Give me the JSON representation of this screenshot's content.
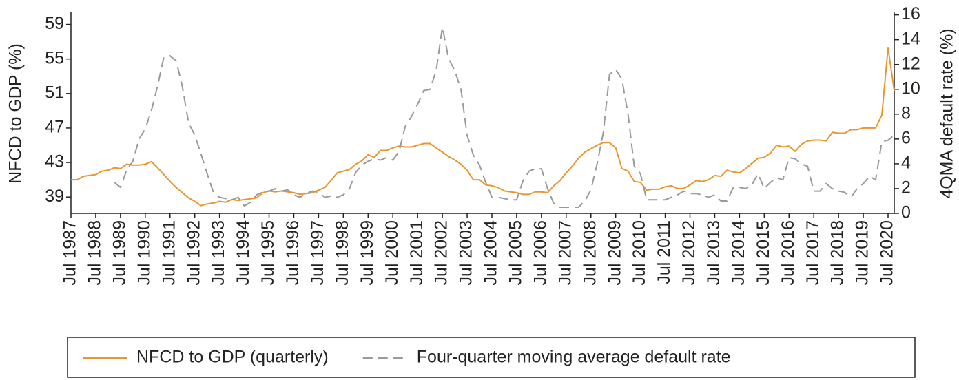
{
  "chart_data": {
    "type": "line",
    "ylabel": "NFCD to GDP (%)",
    "y2label": "4QMA default rate (%)",
    "categories": [
      "Jul 1987",
      null,
      null,
      null,
      "Jul 1988",
      null,
      null,
      null,
      "Jul 1989",
      null,
      null,
      null,
      "Jul 1990",
      null,
      null,
      null,
      "Jul 1991",
      null,
      null,
      null,
      "Jul 1992",
      null,
      null,
      null,
      "Jul 1993",
      null,
      null,
      null,
      "Jul 1994",
      null,
      null,
      null,
      "Jul 1995",
      null,
      null,
      null,
      "Jul 1996",
      null,
      null,
      null,
      "Jul 1997",
      null,
      null,
      null,
      "Jul 1998",
      null,
      null,
      null,
      "Jul 1999",
      null,
      null,
      null,
      "Jul 2000",
      null,
      null,
      null,
      "Jul 2001",
      null,
      null,
      null,
      "Jul 2002",
      null,
      null,
      null,
      "Jul 2003",
      null,
      null,
      null,
      "Jul 2004",
      null,
      null,
      null,
      "Jul 2005",
      null,
      null,
      null,
      "Jul 2006",
      null,
      null,
      null,
      "Jul 2007",
      null,
      null,
      null,
      "Jul 2008",
      null,
      null,
      null,
      "Jul 2009",
      null,
      null,
      null,
      "Jul 2010",
      null,
      null,
      null,
      "Jul 2011",
      null,
      null,
      null,
      "Jul 2012",
      null,
      null,
      null,
      "Jul 2013",
      null,
      null,
      null,
      "Jul 2014",
      null,
      null,
      null,
      "Jul 2015",
      null,
      null,
      null,
      "Jul 2016",
      null,
      null,
      null,
      "Jul 2017",
      null,
      null,
      null,
      "Jul 2018",
      null,
      null,
      null,
      "Jul 2019",
      null,
      null,
      null,
      "Jul 2020",
      null
    ],
    "series": [
      {
        "name": "NFCD to GDP (quarterly)",
        "color": "#e8962e",
        "linestyle": "solid",
        "axis": "y",
        "values": [
          41,
          41,
          41.4,
          41.5,
          41.6,
          42.0,
          42.1,
          42.4,
          42.3,
          42.8,
          42.7,
          42.7,
          42.8,
          43.1,
          42.4,
          41.6,
          40.8,
          40.1,
          39.5,
          38.9,
          38.5,
          38.0,
          38.2,
          38.3,
          38.5,
          38.4,
          38.7,
          38.6,
          38.7,
          38.8,
          38.9,
          39.5,
          39.7,
          39.6,
          39.7,
          39.6,
          39.5,
          39.3,
          39.4,
          39.5,
          39.8,
          40.1,
          40.9,
          41.8,
          42.0,
          42.2,
          42.8,
          43.2,
          43.9,
          43.6,
          44.4,
          44.4,
          44.7,
          44.9,
          44.8,
          44.8,
          45.0,
          45.2,
          45.2,
          44.7,
          44.2,
          43.7,
          43.3,
          42.8,
          42.1,
          41.0,
          41.0,
          40.4,
          40.3,
          40.1,
          39.7,
          39.6,
          39.5,
          39.3,
          39.3,
          39.6,
          39.6,
          39.5,
          40.3,
          40.9,
          41.8,
          42.6,
          43.5,
          44.2,
          44.6,
          45.0,
          45.3,
          45.3,
          44.7,
          42.3,
          42.0,
          40.8,
          40.7,
          39.8,
          39.9,
          39.9,
          40.2,
          40.3,
          40.0,
          40.0,
          40.4,
          40.9,
          40.8,
          41.0,
          41.5,
          41.4,
          42.1,
          41.9,
          41.8,
          42.3,
          42.9,
          43.5,
          43.6,
          44.1,
          45.0,
          44.8,
          44.9,
          44.3,
          45.1,
          45.5,
          45.6,
          45.6,
          45.5,
          46.5,
          46.4,
          46.4,
          46.8,
          46.8,
          47.0,
          47.0,
          47.0,
          48.5,
          56.3,
          51.3
        ]
      },
      {
        "name": "Four-quarter moving average default rate",
        "color": "#999999",
        "linestyle": "dashed",
        "axis": "y2",
        "values": [
          null,
          null,
          null,
          null,
          null,
          null,
          null,
          2.5,
          2.1,
          3.5,
          4.2,
          6.0,
          6.8,
          8.3,
          10.3,
          12.6,
          12.7,
          12.3,
          10.2,
          7.3,
          6.3,
          4.8,
          3.2,
          1.7,
          1.3,
          1.2,
          1.1,
          1.3,
          0.6,
          0.9,
          1.5,
          1.7,
          1.8,
          2.0,
          1.8,
          1.9,
          1.5,
          1.3,
          1.6,
          1.8,
          1.7,
          1.3,
          1.4,
          1.3,
          1.5,
          2.0,
          3.3,
          3.9,
          4.2,
          4.4,
          4.3,
          4.5,
          4.3,
          5.0,
          7.0,
          7.8,
          8.8,
          9.9,
          10.0,
          11.5,
          15.0,
          12.5,
          11.5,
          10.0,
          6.3,
          4.7,
          3.9,
          2.5,
          1.3,
          1.3,
          1.2,
          1.1,
          1.1,
          2.6,
          3.4,
          3.6,
          3.6,
          2.0,
          0.8,
          0.5,
          0.5,
          0.5,
          0.5,
          1.0,
          1.9,
          4.0,
          6.5,
          11.2,
          11.6,
          10.8,
          8.0,
          3.8,
          3.2,
          1.1,
          1.1,
          1.1,
          1.1,
          1.3,
          1.5,
          1.8,
          1.6,
          1.6,
          1.5,
          1.3,
          1.5,
          1.0,
          1.0,
          2.1,
          2.1,
          2.0,
          2.3,
          3.2,
          2.0,
          2.5,
          2.9,
          2.7,
          4.5,
          4.4,
          4.0,
          3.8,
          1.8,
          1.8,
          2.4,
          2.0,
          1.8,
          1.7,
          1.3,
          2.0,
          2.4,
          3.0,
          2.7,
          5.8,
          5.9,
          6.3
        ]
      }
    ],
    "ylim": [
      37.1,
      60.4
    ],
    "yticks": [
      39,
      43,
      47,
      51,
      55,
      59
    ],
    "y2lim": [
      0,
      16.2
    ],
    "y2ticks": [
      0,
      2,
      4,
      6,
      8,
      10,
      12,
      14,
      16
    ],
    "legend": "bottom"
  }
}
